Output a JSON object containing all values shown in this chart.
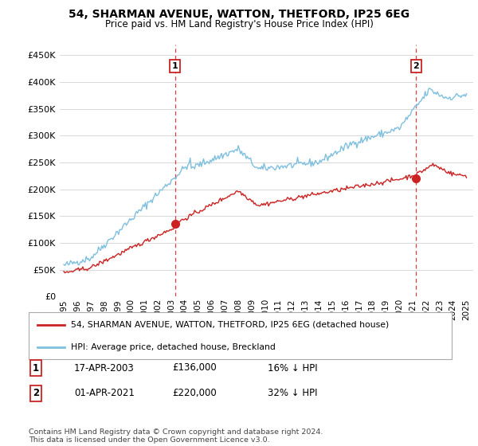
{
  "title": "54, SHARMAN AVENUE, WATTON, THETFORD, IP25 6EG",
  "subtitle": "Price paid vs. HM Land Registry's House Price Index (HPI)",
  "ylabel_ticks": [
    "£0",
    "£50K",
    "£100K",
    "£150K",
    "£200K",
    "£250K",
    "£300K",
    "£350K",
    "£400K",
    "£450K"
  ],
  "ytick_values": [
    0,
    50000,
    100000,
    150000,
    200000,
    250000,
    300000,
    350000,
    400000,
    450000
  ],
  "ylim": [
    0,
    470000
  ],
  "hpi_color": "#7fbfdf",
  "property_color": "#cc2222",
  "vline_color": "#cc2222",
  "sale1_x": 2003.29,
  "sale1_y": 136000,
  "sale2_x": 2021.25,
  "sale2_y": 220000,
  "legend_label1": "54, SHARMAN AVENUE, WATTON, THETFORD, IP25 6EG (detached house)",
  "legend_label2": "HPI: Average price, detached house, Breckland",
  "table_row1": [
    "1",
    "17-APR-2003",
    "£136,000",
    "16% ↓ HPI"
  ],
  "table_row2": [
    "2",
    "01-APR-2021",
    "£220,000",
    "32% ↓ HPI"
  ],
  "footnote": "Contains HM Land Registry data © Crown copyright and database right 2024.\nThis data is licensed under the Open Government Licence v3.0.",
  "xtick_years": [
    1995,
    1996,
    1997,
    1998,
    1999,
    2000,
    2001,
    2002,
    2003,
    2004,
    2005,
    2006,
    2007,
    2008,
    2009,
    2010,
    2011,
    2012,
    2013,
    2014,
    2015,
    2016,
    2017,
    2018,
    2019,
    2020,
    2021,
    2022,
    2023,
    2024,
    2025
  ],
  "background_color": "#ffffff",
  "grid_color": "#d8d8d8"
}
